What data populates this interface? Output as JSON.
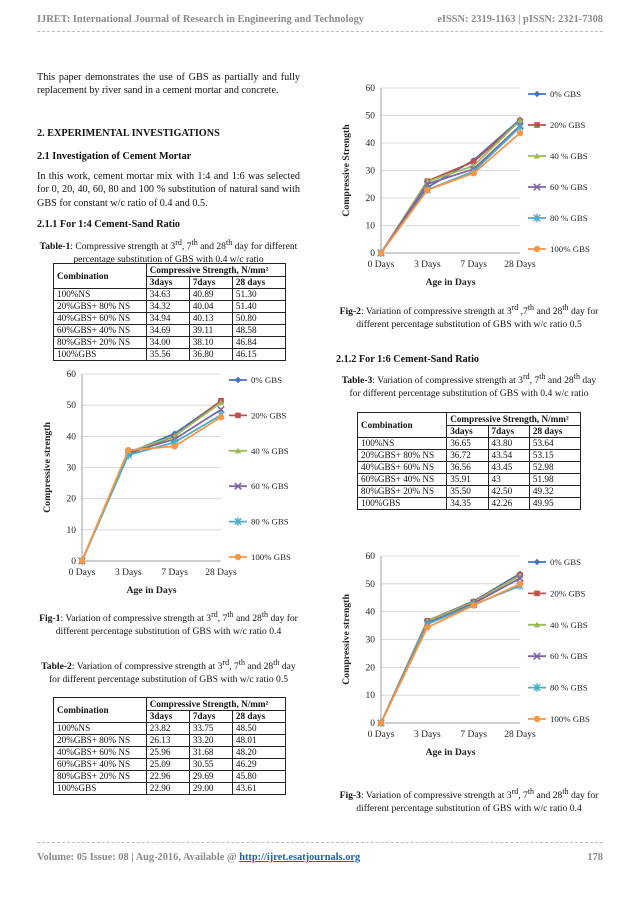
{
  "header": {
    "journal": "IJRET: International Journal of Research in Engineering and Technology",
    "issn": "eISSN: 2319-1163 | pISSN: 2321-7308"
  },
  "footer": {
    "volume": "Volume: 05 Issue: 08 | Aug-2016, Available @ ",
    "link": "http://ijret.esatjournals.org",
    "page": "178"
  },
  "intro": "This paper demonstrates the use of GBS as partially and fully replacement by river sand in a cement mortar and concrete.",
  "section2": {
    "title": "2. EXPERIMENTAL INVESTIGATIONS",
    "sub1": "2.1 Investigation of Cement Mortar",
    "sub1_text": "In this work, cement mortar mix with 1:4 and 1:6 was selected for 0, 20, 40, 60, 80 and 100 % substitution of natural sand with GBS for constant w/c ratio of 0.4 and 0.5.",
    "sub11": "2.1.1 For 1:4 Cement-Sand Ratio",
    "sub12": "2.1.2 For 1:6 Cement-Sand Ratio"
  },
  "table1": {
    "label": "Table-1",
    "caption_a": ": Compressive strength at 3",
    "caption_b": ", 7",
    "caption_c": " and 28",
    "caption_d": " day for different percentage substitution of GBS with 0.4 w/c ratio",
    "sup_rd": "rd",
    "sup_th": "th",
    "combination": "Combination",
    "cs_head": "Compressive Strength, N/mm²",
    "days": [
      "3days",
      "7days",
      "28 days"
    ],
    "rows": [
      [
        "100%NS",
        "34.63",
        "40.89",
        "51.30"
      ],
      [
        "20%GBS+ 80% NS",
        "34.32",
        "40.04",
        "51.40"
      ],
      [
        "40%GBS+ 60% NS",
        "34.94",
        "40.13",
        "50.80"
      ],
      [
        "60%GBS+ 40% NS",
        "34.69",
        "39.11",
        "48.58"
      ],
      [
        "80%GBS+ 20% NS",
        "34.00",
        "38.10",
        "46.84"
      ],
      [
        "100%GBS",
        "35.56",
        "36.80",
        "46.15"
      ]
    ]
  },
  "table2": {
    "label": "Table-2",
    "caption_a": ": Variation of compressive strength at 3",
    "caption_b": ", 7",
    "caption_c": " and 28",
    "caption_d": " day for different percentage substitution of GBS with w/c ratio 0.5",
    "sup_rd": "rd",
    "sup_th": "th",
    "combination": "Combination",
    "cs_head": "Compressive Strength, N/mm²",
    "days": [
      "3days",
      "7days",
      "28 days"
    ],
    "rows": [
      [
        "100%NS",
        "23.82",
        "33.75",
        "48.50"
      ],
      [
        "20%GBS+ 80% NS",
        "26.13",
        "33.20",
        "48.01"
      ],
      [
        "40%GBS+ 60% NS",
        "25.96",
        "31.68",
        "48.20"
      ],
      [
        "60%GBS+ 40% NS",
        "25.09",
        "30.55",
        "46.29"
      ],
      [
        "80%GBS+ 20% NS",
        "22.96",
        "29.69",
        "45.80"
      ],
      [
        "100%GBS",
        "22.90",
        "29.00",
        "43.61"
      ]
    ]
  },
  "table3": {
    "label": "Table-3",
    "caption_a": ": Variation of compressive strength at 3",
    "caption_b": ", 7",
    "caption_c": " and 28",
    "caption_d": " day for different percentage substitution of GBS with 0.4 w/c ratio",
    "sup_rd": "rd",
    "sup_th": "th",
    "combination": "Combination",
    "cs_head": "Compressive Strength, N/mm²",
    "days": [
      "3days",
      "7days",
      "28 days"
    ],
    "rows": [
      [
        "100%NS",
        "36.65",
        "43.80",
        "53.64"
      ],
      [
        "20%GBS+ 80% NS",
        "36.72",
        "43.54",
        "53.15"
      ],
      [
        "40%GBS+ 60% NS",
        "36.56",
        "43.45",
        "52.98"
      ],
      [
        "60%GBS+ 40% NS",
        "35.91",
        "43",
        "51.98"
      ],
      [
        "80%GBS+ 20% NS",
        "35.50",
        "42.50",
        "49.32"
      ],
      [
        "100%GBS",
        "34.35",
        "42.26",
        "49.95"
      ]
    ]
  },
  "fig1": {
    "label": "Fig-1",
    "caption_a": ": Variation of compressive strength at 3",
    "caption_b": ", 7",
    "caption_c": " and 28",
    "caption_d": " day for different percentage substitution of GBS with w/c ratio 0.4",
    "sup_rd": "rd",
    "sup_th": "th"
  },
  "fig2": {
    "label": "Fig-2",
    "caption_a": ": Variation of compressive strength at 3",
    "caption_b": " ,7",
    "caption_c": " and 28",
    "caption_d": " day for different percentage substitution of GBS with w/c ratio 0.5",
    "sup_rd": "rd",
    "sup_th": "th"
  },
  "fig3": {
    "label": "Fig-3",
    "caption_a": ": Variation of compressive strength at 3",
    "caption_b": ", 7",
    "caption_c": " and 28",
    "caption_d": " day for different percentage substitution of GBS with w/c ratio 0.4",
    "sup_rd": "rd",
    "sup_th": "th"
  },
  "chart_data": [
    {
      "type": "line",
      "x": [
        "0 Days",
        "3 Days",
        "7 Days",
        "28 Days"
      ],
      "xlabel": "Age in Days",
      "ylabel": "Compressive strength",
      "ylim": [
        0,
        60
      ],
      "yticks": [
        0,
        10,
        20,
        30,
        40,
        50,
        60
      ],
      "grid": true,
      "legend": "right",
      "series": [
        {
          "name": "0% GBS",
          "color": "#4472c4",
          "marker": "diamond",
          "values": [
            0,
            34.63,
            40.89,
            51.3
          ]
        },
        {
          "name": "20% GBS",
          "color": "#c0504d",
          "marker": "square",
          "values": [
            0,
            34.32,
            40.04,
            51.4
          ]
        },
        {
          "name": "40 % GBS",
          "color": "#9bbb59",
          "marker": "triangle",
          "values": [
            0,
            34.94,
            40.13,
            50.8
          ]
        },
        {
          "name": "60 % GBS",
          "color": "#8064a2",
          "marker": "x",
          "values": [
            0,
            34.69,
            39.11,
            48.58
          ]
        },
        {
          "name": "80 % GBS",
          "color": "#4bacc6",
          "marker": "star",
          "values": [
            0,
            34.0,
            38.1,
            46.84
          ]
        },
        {
          "name": "100% GBS",
          "color": "#f79646",
          "marker": "circle",
          "values": [
            0,
            35.56,
            36.8,
            46.15
          ]
        }
      ]
    },
    {
      "type": "line",
      "x": [
        "0 Days",
        "3 Days",
        "7 Days",
        "28 Days"
      ],
      "xlabel": "Age in Days",
      "ylabel": "Compressive Strength",
      "ylim": [
        0,
        60
      ],
      "yticks": [
        0,
        10,
        20,
        30,
        40,
        50,
        60
      ],
      "grid": true,
      "legend": "right",
      "series": [
        {
          "name": "0% GBS",
          "color": "#4472c4",
          "marker": "diamond",
          "values": [
            0,
            23.82,
            33.75,
            48.5
          ]
        },
        {
          "name": "20% GBS",
          "color": "#c0504d",
          "marker": "square",
          "values": [
            0,
            26.13,
            33.2,
            48.01
          ]
        },
        {
          "name": "40 % GBS",
          "color": "#9bbb59",
          "marker": "triangle",
          "values": [
            0,
            25.96,
            31.68,
            48.2
          ]
        },
        {
          "name": "60 % GBS",
          "color": "#8064a2",
          "marker": "x",
          "values": [
            0,
            25.09,
            30.55,
            46.29
          ]
        },
        {
          "name": "80 % GBS",
          "color": "#4bacc6",
          "marker": "star",
          "values": [
            0,
            22.96,
            29.69,
            45.8
          ]
        },
        {
          "name": "100% GBS",
          "color": "#f79646",
          "marker": "circle",
          "values": [
            0,
            22.9,
            29.0,
            43.61
          ]
        }
      ]
    },
    {
      "type": "line",
      "x": [
        "0 Days",
        "3 Days",
        "7 Days",
        "28 Days"
      ],
      "xlabel": "Age in Days",
      "ylabel": "Compressive strength",
      "ylim": [
        0,
        60
      ],
      "yticks": [
        0,
        10,
        20,
        30,
        40,
        50,
        60
      ],
      "grid": true,
      "legend": "right",
      "series": [
        {
          "name": "0% GBS",
          "color": "#4472c4",
          "marker": "diamond",
          "values": [
            0,
            36.65,
            43.8,
            53.64
          ]
        },
        {
          "name": "20% GBS",
          "color": "#c0504d",
          "marker": "square",
          "values": [
            0,
            36.72,
            43.54,
            53.15
          ]
        },
        {
          "name": "40 % GBS",
          "color": "#9bbb59",
          "marker": "triangle",
          "values": [
            0,
            36.56,
            43.45,
            52.98
          ]
        },
        {
          "name": "60 % GBS",
          "color": "#8064a2",
          "marker": "x",
          "values": [
            0,
            35.91,
            43,
            51.98
          ]
        },
        {
          "name": "80 % GBS",
          "color": "#4bacc6",
          "marker": "star",
          "values": [
            0,
            35.5,
            42.5,
            49.32
          ]
        },
        {
          "name": "100% GBS",
          "color": "#f79646",
          "marker": "circle",
          "values": [
            0,
            34.35,
            42.26,
            49.95
          ]
        }
      ]
    }
  ]
}
